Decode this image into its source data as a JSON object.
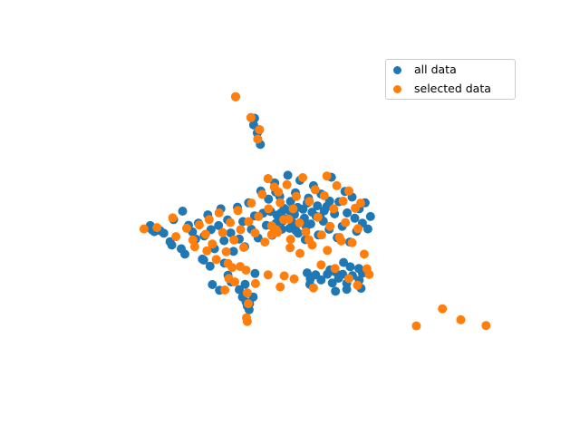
{
  "chart_data": {
    "type": "scatter",
    "title": "",
    "xlabel": "",
    "ylabel": "",
    "axes_visible": false,
    "xlim": [
      0,
      100
    ],
    "ylim": [
      0,
      100
    ],
    "legend_position": "top-right",
    "series": [
      {
        "name": "all data",
        "color": "#1f77b4",
        "points": [
          [
            36.3,
            86.8
          ],
          [
            39.7,
            80.6
          ],
          [
            40.3,
            78.4
          ],
          [
            40.5,
            80.4
          ],
          [
            41.1,
            76.0
          ],
          [
            41.6,
            77.0
          ],
          [
            41.2,
            74.2
          ],
          [
            41.8,
            72.6
          ],
          [
            43.5,
            62.4
          ],
          [
            45.2,
            58.4
          ],
          [
            17.3,
            48.4
          ],
          [
            17.7,
            47.1
          ],
          [
            18.2,
            46.6
          ],
          [
            19.5,
            46.9
          ],
          [
            20.3,
            46.1
          ],
          [
            21.7,
            43.6
          ],
          [
            22.1,
            42.6
          ],
          [
            24.2,
            41.5
          ],
          [
            25.0,
            39.9
          ],
          [
            28.9,
            38.4
          ],
          [
            29.2,
            38.1
          ],
          [
            30.6,
            36.3
          ],
          [
            22.5,
            50.2
          ],
          [
            24.5,
            52.7
          ],
          [
            25.8,
            48.5
          ],
          [
            26.7,
            46.5
          ],
          [
            27.4,
            44.4
          ],
          [
            28.0,
            49.1
          ],
          [
            29.3,
            45.3
          ],
          [
            30.1,
            51.6
          ],
          [
            30.8,
            47.2
          ],
          [
            31.6,
            41.5
          ],
          [
            32.5,
            48.4
          ],
          [
            33.0,
            53.4
          ],
          [
            33.7,
            43.9
          ],
          [
            34.5,
            50.1
          ],
          [
            35.2,
            46.2
          ],
          [
            35.8,
            40.7
          ],
          [
            36.7,
            53.9
          ],
          [
            37.1,
            44.4
          ],
          [
            37.9,
            49.6
          ],
          [
            38.3,
            42.1
          ],
          [
            39.2,
            55.2
          ],
          [
            39.8,
            47.3
          ],
          [
            40.5,
            51.3
          ],
          [
            41.3,
            44.7
          ],
          [
            41.9,
            58.7
          ],
          [
            42.4,
            52.1
          ],
          [
            43.1,
            48.5
          ],
          [
            43.6,
            56.3
          ],
          [
            44.4,
            45.5
          ],
          [
            45.0,
            61.1
          ],
          [
            45.5,
            51.5
          ],
          [
            46.1,
            57.1
          ],
          [
            46.6,
            47.3
          ],
          [
            47.1,
            53.5
          ],
          [
            47.9,
            63.4
          ],
          [
            48.5,
            55.6
          ],
          [
            49.0,
            49.1
          ],
          [
            49.6,
            58.2
          ],
          [
            50.2,
            46.1
          ],
          [
            50.6,
            61.9
          ],
          [
            51.3,
            53.3
          ],
          [
            51.8,
            44.2
          ],
          [
            52.5,
            56.6
          ],
          [
            53.0,
            48.9
          ],
          [
            53.6,
            60.3
          ],
          [
            54.2,
            51.2
          ],
          [
            54.7,
            45.6
          ],
          [
            55.3,
            57.8
          ],
          [
            55.8,
            49.7
          ],
          [
            56.6,
            54.1
          ],
          [
            57.1,
            47.3
          ],
          [
            57.6,
            62.8
          ],
          [
            58.3,
            51.9
          ],
          [
            58.9,
            44.8
          ],
          [
            59.3,
            55.5
          ],
          [
            60.0,
            48.2
          ],
          [
            60.6,
            58.6
          ],
          [
            61.1,
            52.2
          ],
          [
            61.7,
            43.5
          ],
          [
            62.2,
            56.9
          ],
          [
            62.8,
            50.6
          ],
          [
            63.2,
            46.7
          ],
          [
            63.8,
            53.4
          ],
          [
            64.5,
            49.1
          ],
          [
            65.1,
            55.2
          ],
          [
            65.7,
            47.4
          ],
          [
            66.3,
            51.1
          ],
          [
            46.4,
            52.2
          ],
          [
            47.3,
            50.4
          ],
          [
            48.2,
            52.9
          ],
          [
            49.4,
            51.7
          ],
          [
            50.1,
            53.8
          ],
          [
            51.6,
            50.6
          ],
          [
            52.2,
            55.1
          ],
          [
            53.3,
            52.4
          ],
          [
            54.5,
            54.3
          ],
          [
            55.1,
            51.0
          ],
          [
            56.0,
            52.8
          ],
          [
            57.2,
            55.7
          ],
          [
            44.1,
            52.6
          ],
          [
            45.3,
            49.1
          ],
          [
            46.8,
            49.8
          ],
          [
            48.3,
            47.6
          ],
          [
            49.7,
            46.9
          ],
          [
            50.8,
            49.4
          ],
          [
            52.0,
            48.1
          ],
          [
            33.8,
            37.2
          ],
          [
            34.6,
            33.6
          ],
          [
            35.3,
            31.6
          ],
          [
            37.8,
            27.1
          ],
          [
            38.6,
            25.6
          ],
          [
            38.9,
            24.4
          ],
          [
            39.3,
            23.3
          ],
          [
            31.1,
            30.8
          ],
          [
            32.7,
            29.1
          ],
          [
            37.1,
            29.3
          ],
          [
            40.2,
            27.1
          ],
          [
            39.4,
            25.1
          ],
          [
            40.6,
            34.1
          ],
          [
            38.4,
            30.9
          ],
          [
            52.2,
            34.3
          ],
          [
            52.9,
            32.5
          ],
          [
            54.1,
            33.7
          ],
          [
            55.3,
            32.2
          ],
          [
            56.7,
            33.9
          ],
          [
            57.8,
            31.3
          ],
          [
            58.4,
            34.6
          ],
          [
            59.2,
            32.7
          ],
          [
            60.1,
            33.9
          ],
          [
            61.0,
            31.2
          ],
          [
            62.3,
            33.5
          ],
          [
            63.8,
            32.1
          ],
          [
            64.5,
            34.2
          ],
          [
            60.3,
            37.4
          ],
          [
            61.8,
            36.1
          ],
          [
            52.8,
            30.9
          ],
          [
            58.5,
            28.8
          ],
          [
            64.2,
            29.7
          ],
          [
            63.7,
            35.6
          ],
          [
            57.3,
            35.2
          ],
          [
            61.0,
            29.4
          ]
        ]
      },
      {
        "name": "selected data",
        "color": "#ff7f0e",
        "points": [
          [
            36.3,
            86.8
          ],
          [
            39.7,
            80.6
          ],
          [
            41.6,
            77.0
          ],
          [
            41.2,
            74.2
          ],
          [
            43.5,
            62.4
          ],
          [
            45.8,
            58.4
          ],
          [
            15.9,
            47.4
          ],
          [
            18.8,
            47.8
          ],
          [
            23.0,
            45.1
          ],
          [
            27.2,
            42.1
          ],
          [
            29.9,
            40.9
          ],
          [
            32.0,
            38.3
          ],
          [
            22.3,
            50.7
          ],
          [
            25.4,
            47.6
          ],
          [
            26.8,
            44.1
          ],
          [
            28.2,
            48.6
          ],
          [
            29.6,
            45.8
          ],
          [
            30.4,
            50.2
          ],
          [
            31.1,
            42.9
          ],
          [
            32.6,
            52.2
          ],
          [
            33.4,
            46.3
          ],
          [
            34.2,
            40.6
          ],
          [
            35.1,
            49.3
          ],
          [
            35.9,
            44.1
          ],
          [
            36.8,
            52.9
          ],
          [
            37.4,
            47.2
          ],
          [
            38.1,
            41.9
          ],
          [
            39.2,
            49.6
          ],
          [
            39.8,
            55.1
          ],
          [
            40.6,
            46.2
          ],
          [
            41.4,
            51.1
          ],
          [
            42.2,
            57.7
          ],
          [
            42.8,
            43.5
          ],
          [
            43.6,
            53.4
          ],
          [
            44.3,
            48.3
          ],
          [
            44.9,
            59.9
          ],
          [
            45.6,
            46.4
          ],
          [
            46.2,
            55.2
          ],
          [
            47.0,
            50.2
          ],
          [
            47.7,
            60.6
          ],
          [
            48.5,
            44.3
          ],
          [
            49.1,
            53.4
          ],
          [
            49.8,
            57.1
          ],
          [
            50.5,
            49.2
          ],
          [
            51.2,
            62.7
          ],
          [
            51.9,
            46.5
          ],
          [
            52.7,
            55.6
          ],
          [
            53.3,
            42.6
          ],
          [
            54.0,
            59.1
          ],
          [
            54.6,
            50.9
          ],
          [
            55.4,
            45.6
          ],
          [
            56.0,
            57.3
          ],
          [
            56.6,
            63.2
          ],
          [
            57.3,
            48.2
          ],
          [
            58.1,
            53.4
          ],
          [
            58.8,
            60.3
          ],
          [
            59.4,
            44.9
          ],
          [
            60.2,
            55.7
          ],
          [
            60.7,
            49.3
          ],
          [
            61.5,
            58.7
          ],
          [
            62.2,
            43.3
          ],
          [
            62.9,
            53.6
          ],
          [
            63.5,
            47.5
          ],
          [
            64.1,
            55.1
          ],
          [
            64.9,
            39.9
          ],
          [
            65.5,
            35.5
          ],
          [
            66.0,
            33.8
          ],
          [
            38.6,
            35.1
          ],
          [
            37.3,
            36.2
          ],
          [
            34.8,
            32.6
          ],
          [
            33.9,
            29.2
          ],
          [
            40.7,
            31.1
          ],
          [
            43.5,
            33.7
          ],
          [
            49.3,
            32.5
          ],
          [
            46.2,
            30.1
          ],
          [
            53.6,
            29.8
          ],
          [
            58.4,
            35.6
          ],
          [
            55.3,
            36.7
          ],
          [
            61.5,
            32.6
          ],
          [
            63.4,
            30.6
          ],
          [
            50.6,
            40.1
          ],
          [
            48.4,
            41.8
          ],
          [
            56.7,
            41.0
          ],
          [
            59.8,
            43.8
          ],
          [
            47.1,
            33.4
          ],
          [
            39.1,
            25.1
          ],
          [
            38.9,
            28.3
          ],
          [
            38.7,
            20.9
          ],
          [
            44.3,
            45.7
          ],
          [
            45.3,
            47.2
          ],
          [
            48.1,
            50.3
          ],
          [
            52.6,
            44.2
          ],
          [
            35.5,
            35.9
          ],
          [
            34.6,
            37.1
          ],
          [
            36.1,
            31.6
          ],
          [
            38.9,
            19.8
          ],
          [
            82.3,
            23.6
          ],
          [
            86.4,
            20.3
          ],
          [
            92.0,
            18.6
          ],
          [
            76.5,
            18.5
          ]
        ]
      }
    ]
  }
}
